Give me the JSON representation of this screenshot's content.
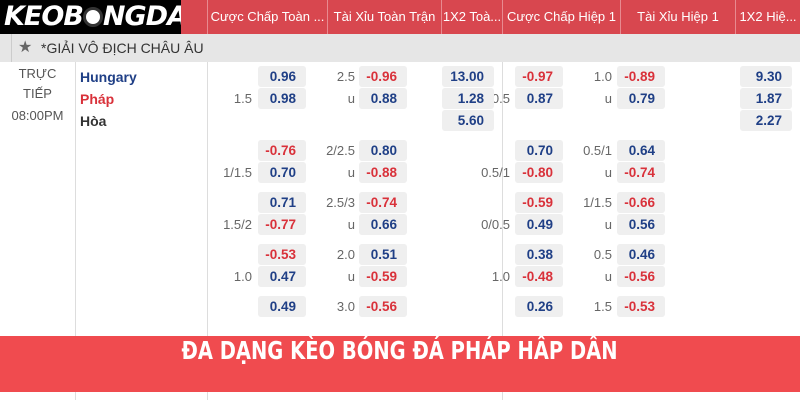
{
  "logo": "KEOBONGDA",
  "headers": [
    "Cược Chấp Toàn ...",
    "Tài Xỉu Toàn Trận",
    "1X2 Toà...",
    "Cược Chấp Hiệp 1",
    "Tài Xỉu Hiệp 1",
    "1X2 Hiệ..."
  ],
  "league": "*GIẢI VÔ ĐỊCH CHÂU ÂU",
  "match": {
    "status_line1": "TRỰC",
    "status_line2": "TIẾP",
    "time": "08:00PM",
    "home": "Hungary",
    "away": "Pháp",
    "draw": "Hòa"
  },
  "colors": {
    "header": "#d8474f",
    "positive": "#1f3f86",
    "negative": "#d9313a",
    "banner": "#f04b4f"
  },
  "blocks": [
    {
      "ft_hdp": {
        "line": "1.5",
        "top": "0.96",
        "bottom": "0.98"
      },
      "ft_ou": {
        "line": "2.5",
        "u": "u",
        "top": "-0.96",
        "bottom": "0.88"
      },
      "ft_1x2": [
        "13.00",
        "1.28",
        "5.60"
      ],
      "h1_hdp": {
        "line": "0.5",
        "top": "-0.97",
        "bottom": "0.87"
      },
      "h1_ou": {
        "line": "1.0",
        "u": "u",
        "top": "-0.89",
        "bottom": "0.79"
      },
      "h1_1x2": [
        "9.30",
        "1.87",
        "2.27"
      ]
    },
    {
      "ft_hdp": {
        "line": "1/1.5",
        "top": "-0.76",
        "bottom": "0.70"
      },
      "ft_ou": {
        "line": "2/2.5",
        "u": "u",
        "top": "0.80",
        "bottom": "-0.88"
      },
      "h1_hdp": {
        "line": "0.5/1",
        "top": "0.70",
        "bottom": "-0.80"
      },
      "h1_ou": {
        "line": "0.5/1",
        "u": "u",
        "top": "0.64",
        "bottom": "-0.74"
      }
    },
    {
      "ft_hdp": {
        "line": "1.5/2",
        "top": "0.71",
        "bottom": "-0.77"
      },
      "ft_ou": {
        "line": "2.5/3",
        "u": "u",
        "top": "-0.74",
        "bottom": "0.66"
      },
      "h1_hdp": {
        "line": "0/0.5",
        "top": "-0.59",
        "bottom": "0.49"
      },
      "h1_ou": {
        "line": "1/1.5",
        "u": "u",
        "top": "-0.66",
        "bottom": "0.56"
      }
    },
    {
      "ft_hdp": {
        "line": "1.0",
        "top": "-0.53",
        "bottom": "0.47"
      },
      "ft_ou": {
        "line": "2.0",
        "u": "u",
        "top": "0.51",
        "bottom": "-0.59"
      },
      "h1_hdp": {
        "line": "1.0",
        "top": "0.38",
        "bottom": "-0.48"
      },
      "h1_ou": {
        "line": "0.5",
        "u": "u",
        "top": "0.46",
        "bottom": "-0.56"
      }
    },
    {
      "ft_hdp": {
        "top": "0.49"
      },
      "ft_ou": {
        "line": "3.0",
        "top": "-0.56"
      },
      "h1_hdp": {
        "top": "0.26"
      },
      "h1_ou": {
        "line": "1.5",
        "top": "-0.53"
      }
    }
  ],
  "banner": "ĐA DẠNG KÈO BÓNG ĐÁ PHÁP HẤP DẪN"
}
